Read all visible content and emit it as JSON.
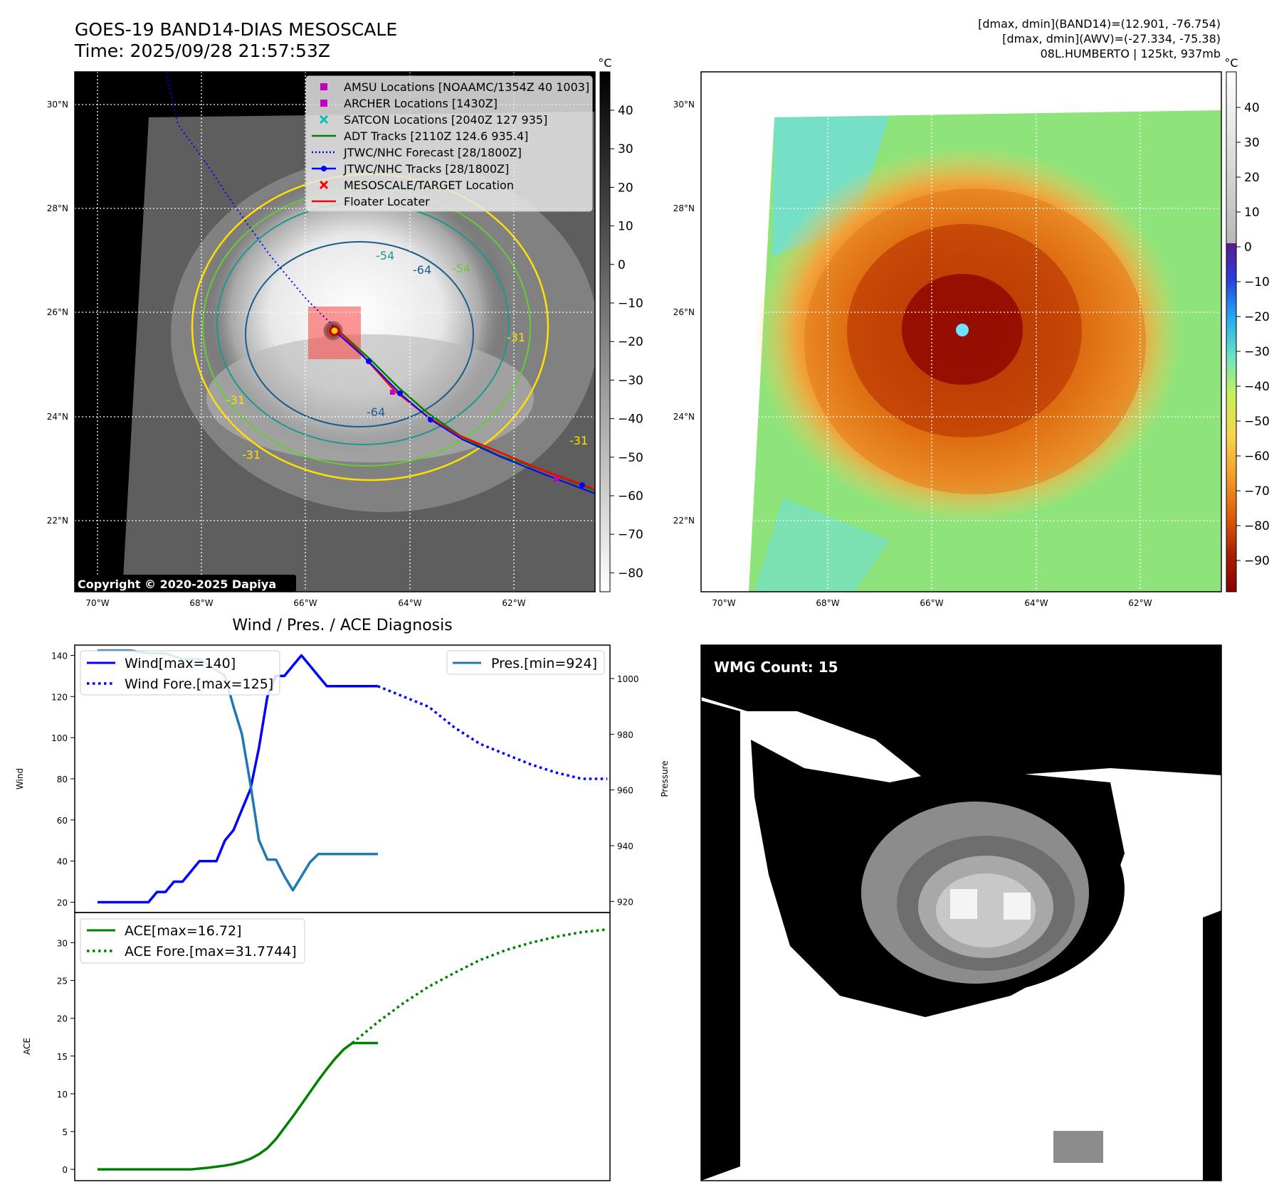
{
  "header": {
    "title_line1": "GOES-19 BAND14-DIAS MESOSCALE",
    "title_line2": "Time: 2025/09/28 21:57:53Z",
    "info_line1": "[dmax, dmin](BAND14)=(12.901, -76.754)",
    "info_line2": "[dmax, dmin](AWV)=(-27.334, -75.38)",
    "info_line3": "08L.HUMBERTO | 125kt, 937mb"
  },
  "colors": {
    "wind": "#0000ff",
    "pressure": "#1f77b4",
    "ace": "#008000",
    "floater": "#ff0000",
    "adt": "#008000",
    "amsu": "#c000c0",
    "satcon": "#00bfbf"
  },
  "ir_panel": {
    "units": "°C",
    "lat_labels": [
      "30°N",
      "28°N",
      "26°N",
      "24°N",
      "22°N"
    ],
    "lon_labels": [
      "70°W",
      "68°W",
      "66°W",
      "64°W",
      "62°W"
    ],
    "colorbar_ticks": [
      "40",
      "30",
      "20",
      "10",
      "0",
      "−10",
      "−20",
      "−30",
      "−40",
      "−50",
      "−60",
      "−70",
      "−80"
    ],
    "contour_labels": [
      "-54",
      "-64",
      "-54",
      "-31",
      "-64",
      "-31",
      "-31",
      "-31"
    ],
    "copyright": "Copyright © 2020-2025 Dapiya",
    "legend": [
      {
        "label": "AMSU Locations [NOAAMC/1354Z 40 1003]",
        "marker": "square",
        "color": "#c000c0"
      },
      {
        "label": "ARCHER Locations [1430Z]",
        "marker": "square",
        "color": "#c000c0"
      },
      {
        "label": "SATCON Locations [2040Z 127 935]",
        "marker": "x",
        "color": "#00bfbf"
      },
      {
        "label": "ADT Tracks [2110Z 124.6 935.4]",
        "marker": "line",
        "color": "#008000"
      },
      {
        "label": "JTWC/NHC Forecast [28/1800Z]",
        "marker": "dotted",
        "color": "#0000ff"
      },
      {
        "label": "JTWC/NHC Tracks [28/1800Z]",
        "marker": "line-dot",
        "color": "#0000ff"
      },
      {
        "label": "MESOSCALE/TARGET Location",
        "marker": "x",
        "color": "#ff0000"
      },
      {
        "label": "Floater Locater",
        "marker": "line",
        "color": "#ff0000"
      }
    ]
  },
  "awv_panel": {
    "units": "°C",
    "lat_labels": [
      "30°N",
      "28°N",
      "26°N",
      "24°N",
      "22°N"
    ],
    "lon_labels": [
      "70°W",
      "68°W",
      "66°W",
      "64°W",
      "62°W"
    ],
    "colorbar_ticks": [
      "40",
      "30",
      "20",
      "10",
      "0",
      "−10",
      "−20",
      "−30",
      "−40",
      "−50",
      "−60",
      "−70",
      "−80",
      "−90"
    ]
  },
  "wmg_panel": {
    "badge": "WMG Count: 15"
  },
  "chart_data": [
    {
      "type": "line",
      "title": "Wind / Pres. / ACE Diagnosis",
      "ylabel": "Wind",
      "y2label": "Pressure",
      "ylim": [
        15,
        145
      ],
      "y2lim": [
        916,
        1012
      ],
      "yticks": [
        20,
        40,
        60,
        80,
        100,
        120,
        140
      ],
      "y2ticks": [
        920,
        940,
        960,
        980,
        1000
      ],
      "x": [
        0,
        1,
        2,
        3,
        4,
        5,
        6,
        7,
        8,
        9,
        10,
        11,
        12,
        13,
        14,
        15,
        16,
        17,
        18,
        19,
        20,
        21,
        22,
        23,
        24,
        25,
        26,
        27,
        28,
        29,
        30,
        31,
        32,
        33,
        34,
        35,
        36,
        37,
        38,
        39,
        40,
        41,
        42,
        43,
        44,
        45,
        46,
        47,
        48,
        49,
        50,
        51,
        52,
        53,
        54,
        55,
        56,
        57,
        58,
        59,
        60,
        61,
        62,
        63,
        64,
        65,
        66
      ],
      "series": [
        {
          "name": "Wind[max=140]",
          "style": "solid",
          "color": "#0000ff",
          "axis": "left",
          "x": [
            0,
            4,
            8,
            12,
            14,
            16,
            18,
            20,
            22,
            24,
            26,
            28,
            30,
            32,
            34,
            36,
            38,
            40,
            42,
            44,
            46,
            48,
            50,
            52,
            54,
            56,
            58,
            60,
            62,
            64,
            66
          ],
          "values": [
            20,
            20,
            20,
            20,
            25,
            25,
            30,
            30,
            35,
            40,
            40,
            40,
            50,
            55,
            65,
            75,
            95,
            120,
            130,
            130,
            135,
            140,
            135,
            130,
            125,
            125,
            125,
            125,
            125,
            125,
            125
          ]
        },
        {
          "name": "Wind Fore.[max=125]",
          "style": "dotted",
          "color": "#0000ff",
          "axis": "left",
          "x": [
            66,
            72,
            78,
            84,
            90,
            96,
            102,
            108,
            114,
            120
          ],
          "values": [
            125,
            120,
            115,
            105,
            97,
            92,
            87,
            83,
            80,
            80
          ]
        },
        {
          "name": "Pres.[min=924]",
          "style": "solid",
          "color": "#1f77b4",
          "axis": "right",
          "x": [
            0,
            4,
            8,
            12,
            16,
            20,
            24,
            28,
            30,
            32,
            34,
            36,
            38,
            40,
            42,
            44,
            46,
            48,
            50,
            52,
            54,
            56,
            58,
            60,
            62,
            64,
            66
          ],
          "values": [
            1010,
            1010,
            1010,
            1009,
            1009,
            1007,
            1007,
            1003,
            1001,
            990,
            980,
            962,
            942,
            935,
            935,
            929,
            924,
            929,
            934,
            937,
            937,
            937,
            937,
            937,
            937,
            937,
            937
          ]
        }
      ]
    },
    {
      "type": "line",
      "ylabel": "ACE",
      "ylim": [
        -1.5,
        34
      ],
      "yticks": [
        0,
        5,
        10,
        15,
        20,
        25,
        30
      ],
      "series": [
        {
          "name": "ACE[max=16.72]",
          "style": "solid",
          "color": "#008000",
          "x": [
            0,
            8,
            16,
            22,
            26,
            30,
            32,
            34,
            36,
            38,
            40,
            42,
            44,
            46,
            48,
            50,
            52,
            54,
            56,
            58,
            60,
            62,
            64,
            66
          ],
          "values": [
            0,
            0,
            0,
            0,
            0.2,
            0.5,
            0.7,
            1,
            1.4,
            2,
            2.8,
            4,
            5.5,
            7,
            8.6,
            10.2,
            11.8,
            13.3,
            14.7,
            15.9,
            16.72,
            16.72,
            16.72,
            16.72
          ]
        },
        {
          "name": "ACE Fore.[max=31.7744]",
          "style": "dotted",
          "color": "#008000",
          "x": [
            60,
            66,
            72,
            78,
            84,
            90,
            96,
            102,
            108,
            114,
            120
          ],
          "values": [
            16.72,
            19.5,
            22,
            24.2,
            26,
            27.7,
            29,
            30,
            30.8,
            31.4,
            31.77
          ]
        }
      ]
    }
  ]
}
